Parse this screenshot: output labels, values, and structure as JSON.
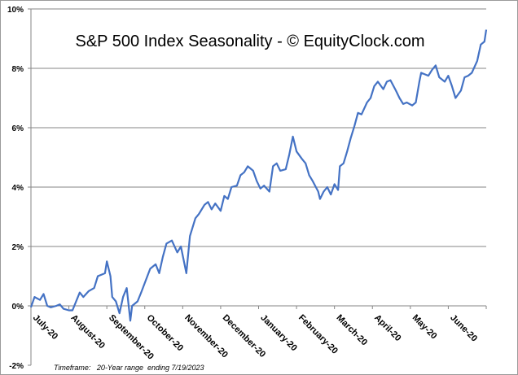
{
  "chart_data": {
    "type": "line",
    "title": "S&P 500 Index Seasonality - © EquityClock.com",
    "xlabel": "",
    "ylabel": "",
    "footnote": "Timeframe:   20-Year range  ending 7/19/2023",
    "ylim": [
      -2,
      10
    ],
    "yticks": [
      -2,
      0,
      2,
      4,
      6,
      8,
      10
    ],
    "ytick_labels": [
      "-2%",
      "0%",
      "2%",
      "4%",
      "6%",
      "8%",
      "10%"
    ],
    "xlim": [
      0,
      252
    ],
    "x_unit": "trading day",
    "categories": [
      "July-20",
      "August-20",
      "September-20",
      "October-20",
      "November-20",
      "December-20",
      "January-20",
      "February-20",
      "March-20",
      "April-20",
      "May-20",
      "June-20"
    ],
    "grid": "horizontal",
    "series": [
      {
        "name": "S&P 500 Index Seasonality",
        "color": "#4472C4",
        "x": [
          0,
          2,
          5,
          7,
          9,
          11,
          14,
          16,
          18,
          21,
          23,
          27,
          29,
          32,
          35,
          37,
          41,
          42,
          44,
          45,
          47,
          49,
          51,
          53,
          55,
          56,
          59,
          61,
          66,
          69,
          71,
          73,
          75,
          78,
          81,
          83,
          86,
          88,
          91,
          93,
          96,
          98,
          100,
          102,
          105,
          107,
          109,
          111,
          114,
          116,
          118,
          120,
          123,
          125,
          127,
          129,
          132,
          134,
          136,
          138,
          141,
          143,
          145,
          147,
          150,
          152,
          154,
          156,
          159,
          160,
          162,
          164,
          166,
          168,
          170,
          171,
          173,
          175,
          177,
          179,
          181,
          183,
          186,
          188,
          190,
          192,
          195,
          197,
          199,
          202,
          204,
          206,
          208,
          211,
          213,
          215,
          216,
          220,
          222,
          224,
          226,
          229,
          231,
          233,
          235,
          238,
          240,
          242,
          244,
          247,
          249,
          251,
          252
        ],
        "y": [
          -0.05,
          0.3,
          0.2,
          0.4,
          0,
          -0.05,
          0,
          0.05,
          -0.1,
          -0.15,
          -0.15,
          0.45,
          0.3,
          0.5,
          0.6,
          1.0,
          1.1,
          1.5,
          1.0,
          0.3,
          0.15,
          -0.25,
          0.3,
          0.6,
          -0.5,
          0,
          0.15,
          0.45,
          1.25,
          1.4,
          1.1,
          1.65,
          2.1,
          2.2,
          1.8,
          2.0,
          1.1,
          2.35,
          2.95,
          3.1,
          3.4,
          3.5,
          3.25,
          3.45,
          3.2,
          3.7,
          3.6,
          4.0,
          4.05,
          4.4,
          4.5,
          4.7,
          4.55,
          4.2,
          3.95,
          4.05,
          3.85,
          4.7,
          4.8,
          4.55,
          4.6,
          5.1,
          5.7,
          5.2,
          4.95,
          4.8,
          4.4,
          4.2,
          3.85,
          3.6,
          3.85,
          4.0,
          3.75,
          4.1,
          3.9,
          4.7,
          4.8,
          5.2,
          5.65,
          6.05,
          6.5,
          6.45,
          6.85,
          7.0,
          7.4,
          7.55,
          7.3,
          7.55,
          7.6,
          7.25,
          7.0,
          6.8,
          6.85,
          6.75,
          6.85,
          7.55,
          7.85,
          7.75,
          7.95,
          8.1,
          7.7,
          7.55,
          7.75,
          7.4,
          7.0,
          7.25,
          7.7,
          7.75,
          7.85,
          8.25,
          8.8,
          8.9,
          9.3
        ]
      }
    ]
  }
}
